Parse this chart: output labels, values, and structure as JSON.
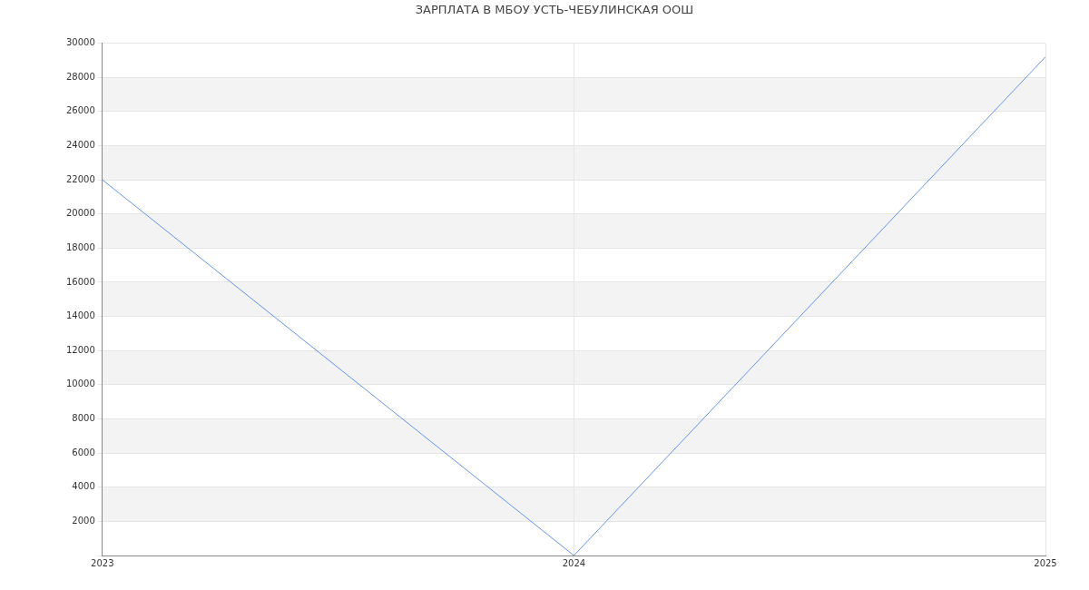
{
  "chart_data": {
    "type": "line",
    "title": "ЗАРПЛАТА В МБОУ УСТЬ-ЧЕБУЛИНСКАЯ ООШ",
    "x": [
      2023,
      2024,
      2025
    ],
    "series": [
      {
        "color": "#6495ed",
        "values": [
          22000,
          0,
          29200
        ]
      }
    ],
    "xlim": [
      2023,
      2025
    ],
    "xticks": [
      2023,
      2024,
      2025
    ],
    "ylim": [
      0,
      30000
    ],
    "yticks": [
      {
        "value": 0,
        "label": null
      },
      2000,
      4000,
      6000,
      8000,
      10000,
      12000,
      14000,
      16000,
      18000,
      20000,
      22000,
      24000,
      26000,
      28000,
      30000
    ],
    "grid": true,
    "legend": false,
    "marker": "none",
    "line_style": "solid"
  }
}
